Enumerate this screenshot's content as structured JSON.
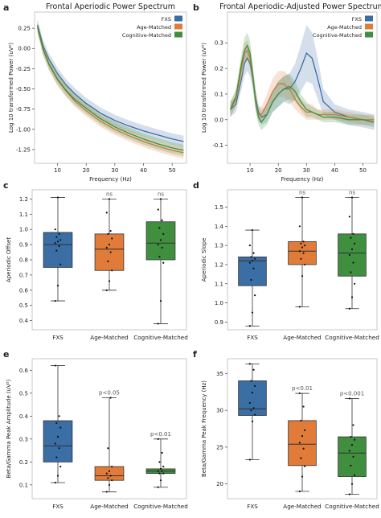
{
  "colors": {
    "fxs": "#3a6ea5",
    "age": "#e07b39",
    "cog": "#3f8f3f",
    "frame": "#bdbdbd",
    "text": "#222222",
    "whisker": "#333333",
    "dot": "#111111"
  },
  "chart_data": [
    {
      "id": "a",
      "panel_label": "a",
      "type": "line",
      "title": "Frontal Aperiodic Power Spectrum",
      "xlabel": "Frequency (Hz)",
      "ylabel": "Log 10 transformed Power (uV²)",
      "xlim": [
        2,
        55
      ],
      "ylim": [
        -1.42,
        0.45
      ],
      "xticks": [
        10,
        20,
        30,
        40,
        50
      ],
      "yticks": [
        -1.25,
        -1.0,
        -0.75,
        -0.5,
        -0.25,
        0.0,
        0.25
      ],
      "ytick_labels": [
        "-1.25",
        "-1.00",
        "-0.75",
        "-0.50",
        "-0.25",
        "0.00",
        "0.25"
      ],
      "legend": {
        "position": "top-right",
        "entries": [
          "FXS",
          "Age-Matched",
          "Cognitive-Matched"
        ]
      },
      "x": [
        3,
        5,
        7,
        10,
        13,
        16,
        20,
        25,
        30,
        35,
        40,
        45,
        50,
        54
      ],
      "series": [
        {
          "name": "FXS",
          "color_key": "fxs",
          "values": [
            0.29,
            0.03,
            -0.13,
            -0.31,
            -0.45,
            -0.56,
            -0.68,
            -0.8,
            -0.89,
            -0.96,
            -1.02,
            -1.07,
            -1.12,
            -1.15
          ],
          "band": 0.07
        },
        {
          "name": "Age-Matched",
          "color_key": "age",
          "values": [
            0.26,
            -0.02,
            -0.2,
            -0.39,
            -0.53,
            -0.65,
            -0.77,
            -0.9,
            -1.0,
            -1.08,
            -1.15,
            -1.21,
            -1.26,
            -1.29
          ],
          "band": 0.07
        },
        {
          "name": "Cognitive-Matched",
          "color_key": "cog",
          "values": [
            0.27,
            -0.01,
            -0.19,
            -0.38,
            -0.52,
            -0.63,
            -0.74,
            -0.87,
            -0.97,
            -1.05,
            -1.12,
            -1.18,
            -1.23,
            -1.26
          ],
          "band": 0.07
        }
      ]
    },
    {
      "id": "b",
      "panel_label": "b",
      "type": "line",
      "title": "Frontal Aperiodic-Adjusted Power Spectrum",
      "xlabel": "Frequency (Hz)",
      "ylabel": "Log 10 transformed Power (uV²)",
      "xlim": [
        2,
        55
      ],
      "ylim": [
        -0.17,
        0.42
      ],
      "xticks": [
        10,
        20,
        30,
        40,
        50
      ],
      "yticks": [
        -0.1,
        0.0,
        0.1,
        0.2,
        0.3
      ],
      "ytick_labels": [
        "-0.1",
        "0.0",
        "0.1",
        "0.2",
        "0.3"
      ],
      "legend": {
        "position": "top-right",
        "entries": [
          "FXS",
          "Age-Matched",
          "Cognitive-Matched"
        ]
      },
      "x": [
        3,
        5,
        7,
        8,
        9,
        10,
        11,
        12,
        13,
        14,
        16,
        18,
        20,
        22,
        24,
        26,
        28,
        30,
        32,
        34,
        36,
        40,
        45,
        50,
        54
      ],
      "series": [
        {
          "name": "FXS",
          "color_key": "fxs",
          "values": [
            0.04,
            0.06,
            0.16,
            0.22,
            0.24,
            0.22,
            0.16,
            0.08,
            0.03,
            0.01,
            0.02,
            0.07,
            0.1,
            0.12,
            0.12,
            0.15,
            0.2,
            0.26,
            0.24,
            0.16,
            0.07,
            0.03,
            0.01,
            0.0,
            -0.01
          ],
          "band": [
            0.03,
            0.03,
            0.04,
            0.05,
            0.05,
            0.05,
            0.04,
            0.04,
            0.03,
            0.03,
            0.03,
            0.04,
            0.05,
            0.05,
            0.06,
            0.07,
            0.09,
            0.11,
            0.1,
            0.08,
            0.05,
            0.03,
            0.03,
            0.03,
            0.03
          ]
        },
        {
          "name": "Age-Matched",
          "color_key": "age",
          "values": [
            0.04,
            0.08,
            0.2,
            0.26,
            0.27,
            0.24,
            0.16,
            0.07,
            0.02,
            0.02,
            0.06,
            0.11,
            0.14,
            0.14,
            0.12,
            0.08,
            0.05,
            0.03,
            0.03,
            0.02,
            0.02,
            0.02,
            0.01,
            0.0,
            0.0
          ],
          "band": [
            0.03,
            0.03,
            0.04,
            0.04,
            0.04,
            0.04,
            0.04,
            0.03,
            0.03,
            0.03,
            0.04,
            0.05,
            0.05,
            0.05,
            0.05,
            0.04,
            0.03,
            0.03,
            0.03,
            0.02,
            0.02,
            0.02,
            0.02,
            0.02,
            0.02
          ]
        },
        {
          "name": "Cognitive-Matched",
          "color_key": "cog",
          "values": [
            0.04,
            0.09,
            0.22,
            0.27,
            0.29,
            0.26,
            0.17,
            0.07,
            0.01,
            -0.01,
            0.02,
            0.07,
            0.1,
            0.12,
            0.13,
            0.11,
            0.07,
            0.04,
            0.03,
            0.02,
            0.01,
            0.01,
            0.0,
            0.0,
            -0.01
          ],
          "band": [
            0.03,
            0.03,
            0.04,
            0.05,
            0.05,
            0.05,
            0.04,
            0.04,
            0.03,
            0.03,
            0.04,
            0.04,
            0.05,
            0.05,
            0.05,
            0.04,
            0.03,
            0.03,
            0.02,
            0.02,
            0.02,
            0.02,
            0.02,
            0.02,
            0.02
          ]
        }
      ]
    },
    {
      "id": "c",
      "panel_label": "c",
      "type": "box",
      "ylabel": "Aperiodic Offset",
      "categories": [
        "FXS",
        "Age-Matched",
        "Cognitive-Matched"
      ],
      "ylim": [
        0.34,
        1.26
      ],
      "yticks": [
        0.4,
        0.5,
        0.6,
        0.7,
        0.8,
        0.9,
        1.0,
        1.1,
        1.2
      ],
      "ytick_labels": [
        "0.4",
        "0.5",
        "0.6",
        "0.7",
        "0.8",
        "0.9",
        "1.0",
        "1.1",
        "1.2"
      ],
      "annotations": [
        "",
        "ns",
        "ns"
      ],
      "boxes": [
        {
          "color_key": "fxs",
          "min": 0.53,
          "q1": 0.75,
          "median": 0.9,
          "q3": 0.98,
          "max": 1.21,
          "points": [
            0.53,
            0.63,
            0.77,
            0.86,
            0.89,
            0.91,
            0.92,
            0.93,
            0.95,
            0.97,
            1.0,
            1.21
          ]
        },
        {
          "color_key": "age",
          "min": 0.6,
          "q1": 0.73,
          "median": 0.87,
          "q3": 0.97,
          "max": 1.2,
          "points": [
            0.6,
            0.66,
            0.73,
            0.79,
            0.85,
            0.88,
            0.9,
            0.94,
            0.97,
            0.99,
            1.11,
            1.2
          ]
        },
        {
          "color_key": "cog",
          "min": 0.38,
          "q1": 0.8,
          "median": 0.91,
          "q3": 1.05,
          "max": 1.2,
          "points": [
            0.38,
            0.53,
            0.78,
            0.82,
            0.88,
            0.9,
            0.93,
            0.97,
            1.01,
            1.06,
            1.13,
            1.2
          ]
        }
      ]
    },
    {
      "id": "d",
      "panel_label": "d",
      "type": "box",
      "ylabel": "Aperiodic Slope",
      "categories": [
        "FXS",
        "Age-Matched",
        "Cognitive-Matched"
      ],
      "ylim": [
        0.86,
        1.59
      ],
      "yticks": [
        0.9,
        1.0,
        1.1,
        1.2,
        1.3,
        1.4,
        1.5
      ],
      "ytick_labels": [
        "0.9",
        "1.0",
        "1.1",
        "1.2",
        "1.3",
        "1.4",
        "1.5"
      ],
      "annotations": [
        "",
        "ns",
        "ns"
      ],
      "boxes": [
        {
          "color_key": "fxs",
          "min": 0.88,
          "q1": 1.09,
          "median": 1.22,
          "q3": 1.24,
          "max": 1.38,
          "points": [
            0.88,
            0.95,
            1.04,
            1.12,
            1.18,
            1.21,
            1.22,
            1.23,
            1.24,
            1.26,
            1.3,
            1.38
          ]
        },
        {
          "color_key": "age",
          "min": 0.98,
          "q1": 1.2,
          "median": 1.27,
          "q3": 1.32,
          "max": 1.55,
          "points": [
            0.98,
            1.14,
            1.2,
            1.23,
            1.26,
            1.27,
            1.29,
            1.3,
            1.31,
            1.32,
            1.4,
            1.55
          ]
        },
        {
          "color_key": "cog",
          "min": 0.97,
          "q1": 1.14,
          "median": 1.26,
          "q3": 1.36,
          "max": 1.55,
          "points": [
            0.97,
            1.03,
            1.1,
            1.16,
            1.21,
            1.25,
            1.28,
            1.31,
            1.34,
            1.36,
            1.45,
            1.55
          ]
        }
      ]
    },
    {
      "id": "e",
      "panel_label": "e",
      "type": "box",
      "ylabel": "Beta/Gamma Peak Amplitude (uV²)",
      "categories": [
        "FXS",
        "Age-Matched",
        "Cognitive-Matched"
      ],
      "ylim": [
        0.04,
        0.65
      ],
      "yticks": [
        0.1,
        0.2,
        0.3,
        0.4,
        0.5,
        0.6
      ],
      "ytick_labels": [
        "0.1",
        "0.2",
        "0.3",
        "0.4",
        "0.5",
        "0.6"
      ],
      "annotations": [
        "",
        "p<0.05",
        "p<0.01"
      ],
      "boxes": [
        {
          "color_key": "fxs",
          "min": 0.11,
          "q1": 0.2,
          "median": 0.27,
          "q3": 0.38,
          "max": 0.62,
          "points": [
            0.11,
            0.14,
            0.18,
            0.22,
            0.26,
            0.28,
            0.31,
            0.35,
            0.37,
            0.4,
            0.62
          ]
        },
        {
          "color_key": "age",
          "min": 0.07,
          "q1": 0.12,
          "median": 0.14,
          "q3": 0.18,
          "max": 0.48,
          "points": [
            0.07,
            0.1,
            0.12,
            0.13,
            0.14,
            0.15,
            0.16,
            0.18,
            0.26,
            0.48
          ]
        },
        {
          "color_key": "cog",
          "min": 0.09,
          "q1": 0.15,
          "median": 0.16,
          "q3": 0.17,
          "max": 0.3,
          "points": [
            0.09,
            0.12,
            0.15,
            0.15,
            0.16,
            0.16,
            0.17,
            0.18,
            0.2,
            0.24,
            0.3
          ]
        }
      ]
    },
    {
      "id": "f",
      "panel_label": "f",
      "type": "box",
      "ylabel": "Beta/Gamma Peak Frequency (Hz)",
      "categories": [
        "FXS",
        "Age-Matched",
        "Cognitive-Matched"
      ],
      "ylim": [
        18.0,
        37.0
      ],
      "yticks": [
        20,
        25,
        30,
        35
      ],
      "ytick_labels": [
        "20",
        "25",
        "30",
        "35"
      ],
      "annotations": [
        "",
        "p<0.01",
        "p<0.001"
      ],
      "boxes": [
        {
          "color_key": "fxs",
          "min": 23.3,
          "q1": 29.3,
          "median": 30.2,
          "q3": 34.0,
          "max": 36.3,
          "points": [
            23.3,
            28.5,
            29.4,
            30.0,
            30.3,
            31.0,
            32.4,
            33.3,
            34.0,
            35.5,
            36.3
          ]
        },
        {
          "color_key": "age",
          "min": 19.0,
          "q1": 22.5,
          "median": 25.4,
          "q3": 28.6,
          "max": 32.3,
          "points": [
            19.0,
            21.0,
            22.4,
            23.5,
            24.8,
            25.6,
            26.5,
            27.3,
            28.6,
            30.5,
            32.3
          ]
        },
        {
          "color_key": "cog",
          "min": 18.6,
          "q1": 21.0,
          "median": 24.2,
          "q3": 26.4,
          "max": 31.6,
          "points": [
            18.6,
            20.0,
            21.2,
            22.5,
            23.7,
            24.5,
            25.3,
            26.0,
            26.4,
            28.0,
            31.6
          ]
        }
      ]
    }
  ]
}
